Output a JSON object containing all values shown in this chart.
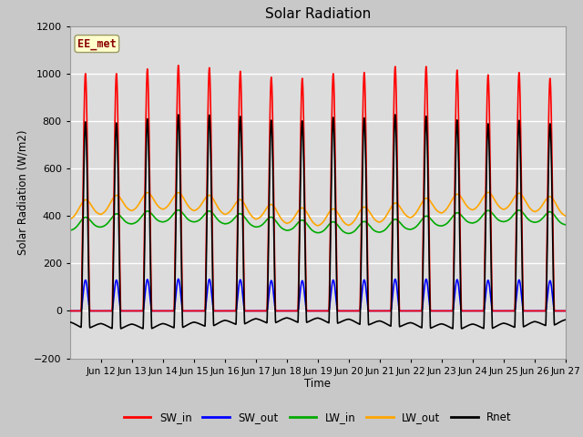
{
  "title": "Solar Radiation",
  "ylabel": "Solar Radiation (W/m2)",
  "xlabel": "Time",
  "ylim": [
    -200,
    1200
  ],
  "yticks": [
    -200,
    0,
    200,
    400,
    600,
    800,
    1000,
    1200
  ],
  "xtick_labels": [
    "Jun 12",
    "Jun 13",
    "Jun 14",
    "Jun 15",
    "Jun 16",
    "Jun 17",
    "Jun 18",
    "Jun 19",
    "Jun 20",
    "Jun 21",
    "Jun 22",
    "Jun 23",
    "Jun 24",
    "Jun 25",
    "Jun 26",
    "Jun 27"
  ],
  "label_text": "EE_met",
  "label_bg": "#FFFFCC",
  "label_fg": "#8B0000",
  "fig_color": "#C8C8C8",
  "plot_bg": "#DCDCDC",
  "grid_color": "#FFFFFF",
  "lines": {
    "SW_in": {
      "color": "#FF0000",
      "lw": 1.2
    },
    "SW_out": {
      "color": "#0000FF",
      "lw": 1.2
    },
    "LW_in": {
      "color": "#00AA00",
      "lw": 1.2
    },
    "LW_out": {
      "color": "#FFA500",
      "lw": 1.2
    },
    "Rnet": {
      "color": "#000000",
      "lw": 1.2
    }
  },
  "n_days": 16,
  "pts_per_day": 288
}
